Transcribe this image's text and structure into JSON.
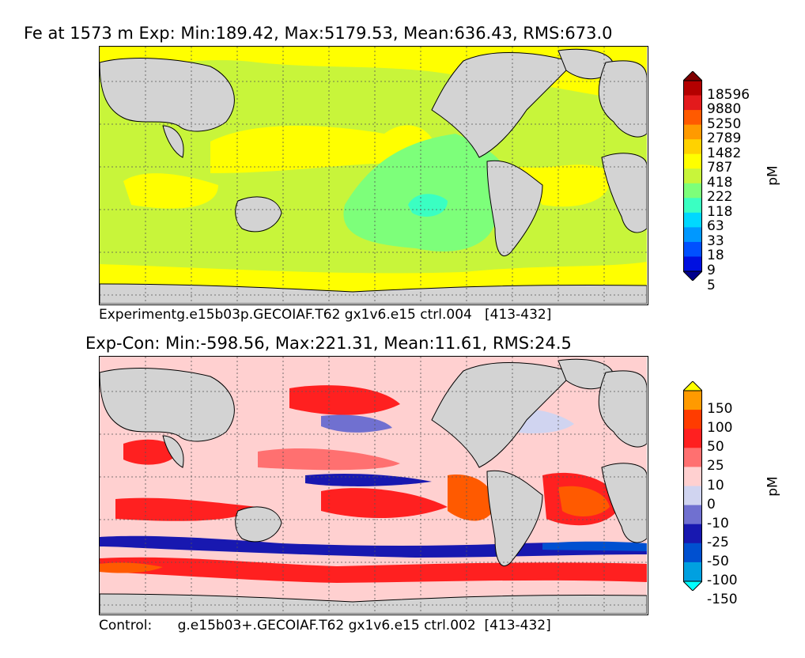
{
  "chart_data": [
    {
      "type": "heatmap",
      "title": "Fe at 1573 m Exp: Min:189.42, Max:5179.53, Mean:636.43, RMS:673.0",
      "caption": "Experimentg.e15b03p.GECOIAF.T62 gx1v6.e15 ctrl.004   [413-432]",
      "colorbar_label": "pM",
      "colorbar_ticks": [
        "18596",
        "9880",
        "5250",
        "2789",
        "1482",
        "787",
        "418",
        "222",
        "118",
        "63",
        "33",
        "18",
        "9",
        "5"
      ],
      "colorbar_colors": [
        "#7f0000",
        "#b40000",
        "#e31a1c",
        "#ff5a00",
        "#ff9a00",
        "#ffd200",
        "#ffff00",
        "#c8f53a",
        "#7dff7a",
        "#3affc2",
        "#00d8ff",
        "#0098ff",
        "#0050ff",
        "#0010e0",
        "#00008c"
      ],
      "stats": {
        "min": 189.42,
        "max": 5179.53,
        "mean": 636.43,
        "rms": 673.0
      },
      "grid": true
    },
    {
      "type": "heatmap",
      "title": "Exp-Con: Min:-598.56, Max:221.31, Mean:11.61, RMS:24.5",
      "caption": "Control:      g.e15b03+.GECOIAF.T62 gx1v6.e15 ctrl.002  [413-432]",
      "colorbar_label": "pM",
      "colorbar_ticks": [
        "150",
        "100",
        "50",
        "25",
        "10",
        "0",
        "-10",
        "-25",
        "-50",
        "-100",
        "-150"
      ],
      "colorbar_colors": [
        "#ffff00",
        "#ff9a00",
        "#ff3c00",
        "#ff2020",
        "#ff7070",
        "#ffd0d0",
        "#d0d4f0",
        "#7070d0",
        "#1818b0",
        "#0050d0",
        "#00a0e0",
        "#00ffff"
      ],
      "stats": {
        "min": -598.56,
        "max": 221.31,
        "mean": 11.61,
        "rms": 24.5
      },
      "grid": true
    }
  ]
}
